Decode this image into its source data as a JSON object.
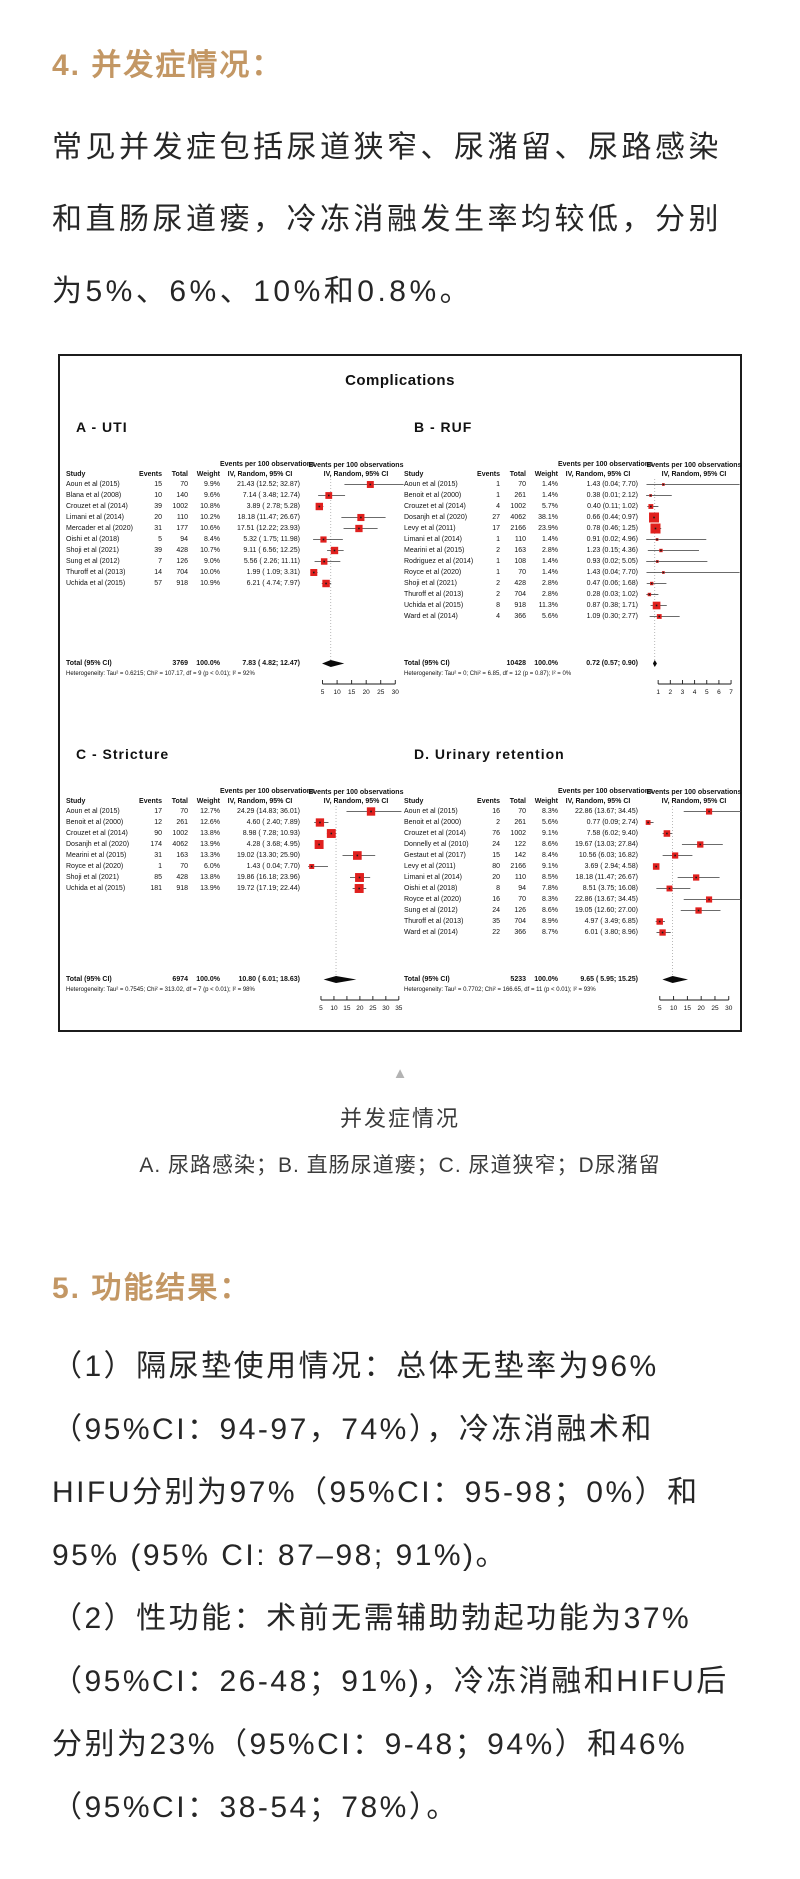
{
  "page": {
    "accent": "#c39764",
    "text_color": "#262626",
    "marker_color": "#e0201e"
  },
  "section4": {
    "heading": "4. 并发症情况：",
    "lines": [
      "常见并发症包括尿道狭窄、尿潴留、尿路感染",
      "和直肠尿道瘘，冷冻消融发生率均较低，分别",
      "为5%、6%、10%和0.8%。"
    ]
  },
  "figure": {
    "title": "Complications",
    "col_headers": {
      "study": "Study",
      "events": "Events",
      "total": "Total",
      "weight": "Weight",
      "ci_line1": "Events per 100 observations",
      "ci_line2": "IV, Random, 95% CI"
    },
    "panels": [
      {
        "label": "A - UTI",
        "row": 1,
        "axis_max": 33,
        "ticks": [
          5,
          10,
          15,
          20,
          25,
          30
        ],
        "studies": [
          {
            "name": "Aoun et al (2015)",
            "events": "15",
            "total": "70",
            "weight": "9.9%",
            "ci": "21.43 (12.52; 32.87)",
            "est": 21.43,
            "lo": 12.52,
            "hi": 32.87,
            "w": 9.9
          },
          {
            "name": "Blana et al (2008)",
            "events": "10",
            "total": "140",
            "weight": "9.6%",
            "ci": "7.14 ( 3.48; 12.74)",
            "est": 7.14,
            "lo": 3.48,
            "hi": 12.74,
            "w": 9.6
          },
          {
            "name": "Crouzet et al (2014)",
            "events": "39",
            "total": "1002",
            "weight": "10.8%",
            "ci": "3.89 ( 2.78;  5.28)",
            "est": 3.89,
            "lo": 2.78,
            "hi": 5.28,
            "w": 10.8
          },
          {
            "name": "Limani et al (2014)",
            "events": "20",
            "total": "110",
            "weight": "10.2%",
            "ci": "18.18 (11.47; 26.67)",
            "est": 18.18,
            "lo": 11.47,
            "hi": 26.67,
            "w": 10.2
          },
          {
            "name": "Mercader et al (2020)",
            "events": "31",
            "total": "177",
            "weight": "10.6%",
            "ci": "17.51 (12.22; 23.93)",
            "est": 17.51,
            "lo": 12.22,
            "hi": 23.93,
            "w": 10.6
          },
          {
            "name": "Oishi et al (2018)",
            "events": "5",
            "total": "94",
            "weight": "8.4%",
            "ci": "5.32 ( 1.75; 11.98)",
            "est": 5.32,
            "lo": 1.75,
            "hi": 11.98,
            "w": 8.4
          },
          {
            "name": "Shoji et al (2021)",
            "events": "39",
            "total": "428",
            "weight": "10.7%",
            "ci": "9.11 ( 6.56; 12.25)",
            "est": 9.11,
            "lo": 6.56,
            "hi": 12.25,
            "w": 10.7
          },
          {
            "name": "Sung et al (2012)",
            "events": "7",
            "total": "126",
            "weight": "9.0%",
            "ci": "5.56 ( 2.26; 11.11)",
            "est": 5.56,
            "lo": 2.26,
            "hi": 11.11,
            "w": 9.0
          },
          {
            "name": "Thuroff et al (2013)",
            "events": "14",
            "total": "704",
            "weight": "10.0%",
            "ci": "1.99 ( 1.09;  3.31)",
            "est": 1.99,
            "lo": 1.09,
            "hi": 3.31,
            "w": 10.0
          },
          {
            "name": "Uchida et al (2015)",
            "events": "57",
            "total": "918",
            "weight": "10.9%",
            "ci": "6.21 ( 4.74;  7.97)",
            "est": 6.21,
            "lo": 4.74,
            "hi": 7.97,
            "w": 10.9
          }
        ],
        "total_row": {
          "label": "Total (95% CI)",
          "total": "3769",
          "weight": "100.0%",
          "ci": "7.83 ( 4.82; 12.47)",
          "est": 7.83,
          "lo": 4.82,
          "hi": 12.47
        },
        "heterogeneity": "Heterogeneity: Tau² = 0.6215; Chi² = 107.17, df = 9 (p < 0.01); I² = 92%"
      },
      {
        "label": "B - RUF",
        "row": 1,
        "axis_max": 7.9,
        "ticks": [
          1,
          2,
          3,
          4,
          5,
          6,
          7
        ],
        "studies": [
          {
            "name": "Aoun et al (2015)",
            "events": "1",
            "total": "70",
            "weight": "1.4%",
            "ci": "1.43 (0.04; 7.70)",
            "est": 1.43,
            "lo": 0.04,
            "hi": 7.7,
            "w": 1.4
          },
          {
            "name": "Benoit et al (2000)",
            "events": "1",
            "total": "261",
            "weight": "1.4%",
            "ci": "0.38 (0.01; 2.12)",
            "est": 0.38,
            "lo": 0.01,
            "hi": 2.12,
            "w": 1.4
          },
          {
            "name": "Crouzet et al (2014)",
            "events": "4",
            "total": "1002",
            "weight": "5.7%",
            "ci": "0.40 (0.11; 1.02)",
            "est": 0.4,
            "lo": 0.11,
            "hi": 1.02,
            "w": 5.7
          },
          {
            "name": "Dosanjh et al (2020)",
            "events": "27",
            "total": "4062",
            "weight": "38.1%",
            "ci": "0.66 (0.44; 0.97)",
            "est": 0.66,
            "lo": 0.44,
            "hi": 0.97,
            "w": 38.1
          },
          {
            "name": "Levy et al (2011)",
            "events": "17",
            "total": "2166",
            "weight": "23.9%",
            "ci": "0.78 (0.46; 1.25)",
            "est": 0.78,
            "lo": 0.46,
            "hi": 1.25,
            "w": 23.9
          },
          {
            "name": "Limani et al (2014)",
            "events": "1",
            "total": "110",
            "weight": "1.4%",
            "ci": "0.91 (0.02; 4.96)",
            "est": 0.91,
            "lo": 0.02,
            "hi": 4.96,
            "w": 1.4
          },
          {
            "name": "Mearini et al (2015)",
            "events": "2",
            "total": "163",
            "weight": "2.8%",
            "ci": "1.23 (0.15; 4.36)",
            "est": 1.23,
            "lo": 0.15,
            "hi": 4.36,
            "w": 2.8
          },
          {
            "name": "Rodriguez et al (2014)",
            "events": "1",
            "total": "108",
            "weight": "1.4%",
            "ci": "0.93 (0.02; 5.05)",
            "est": 0.93,
            "lo": 0.02,
            "hi": 5.05,
            "w": 1.4
          },
          {
            "name": "Royce et al (2020)",
            "events": "1",
            "total": "70",
            "weight": "1.4%",
            "ci": "1.43 (0.04; 7.70)",
            "est": 1.43,
            "lo": 0.04,
            "hi": 7.7,
            "w": 1.4
          },
          {
            "name": "Shoji et al (2021)",
            "events": "2",
            "total": "428",
            "weight": "2.8%",
            "ci": "0.47 (0.06; 1.68)",
            "est": 0.47,
            "lo": 0.06,
            "hi": 1.68,
            "w": 2.8
          },
          {
            "name": "Thuroff et al (2013)",
            "events": "2",
            "total": "704",
            "weight": "2.8%",
            "ci": "0.28 (0.03; 1.02)",
            "est": 0.28,
            "lo": 0.03,
            "hi": 1.02,
            "w": 2.8
          },
          {
            "name": "Uchida et al (2015)",
            "events": "8",
            "total": "918",
            "weight": "11.3%",
            "ci": "0.87 (0.38; 1.71)",
            "est": 0.87,
            "lo": 0.38,
            "hi": 1.71,
            "w": 11.3
          },
          {
            "name": "Ward et al (2014)",
            "events": "4",
            "total": "366",
            "weight": "5.6%",
            "ci": "1.09 (0.30; 2.77)",
            "est": 1.09,
            "lo": 0.3,
            "hi": 2.77,
            "w": 5.6
          }
        ],
        "total_row": {
          "label": "Total (95% CI)",
          "total": "10428",
          "weight": "100.0%",
          "ci": "0.72 (0.57; 0.90)",
          "est": 0.72,
          "lo": 0.57,
          "hi": 0.9
        },
        "heterogeneity": "Heterogeneity: Tau² = 0; Chi² = 6.85, df = 12 (p = 0.87); I² = 0%"
      },
      {
        "label": "C - Stricture",
        "row": 2,
        "axis_max": 37,
        "ticks": [
          5,
          10,
          15,
          20,
          25,
          30,
          35
        ],
        "studies": [
          {
            "name": "Aoun et al (2015)",
            "events": "17",
            "total": "70",
            "weight": "12.7%",
            "ci": "24.29 (14.83; 36.01)",
            "est": 24.29,
            "lo": 14.83,
            "hi": 36.01,
            "w": 12.7
          },
          {
            "name": "Benoit et al (2000)",
            "events": "12",
            "total": "261",
            "weight": "12.6%",
            "ci": "4.60 ( 2.40;  7.89)",
            "est": 4.6,
            "lo": 2.4,
            "hi": 7.89,
            "w": 12.6
          },
          {
            "name": "Crouzet et al (2014)",
            "events": "90",
            "total": "1002",
            "weight": "13.8%",
            "ci": "8.98 ( 7.28; 10.93)",
            "est": 8.98,
            "lo": 7.28,
            "hi": 10.93,
            "w": 13.8
          },
          {
            "name": "Dosanjh et al (2020)",
            "events": "174",
            "total": "4062",
            "weight": "13.9%",
            "ci": "4.28 ( 3.68;  4.95)",
            "est": 4.28,
            "lo": 3.68,
            "hi": 4.95,
            "w": 13.9
          },
          {
            "name": "Mearini et al (2015)",
            "events": "31",
            "total": "163",
            "weight": "13.3%",
            "ci": "19.02 (13.30; 25.90)",
            "est": 19.02,
            "lo": 13.3,
            "hi": 25.9,
            "w": 13.3
          },
          {
            "name": "Royce et al (2020)",
            "events": "1",
            "total": "70",
            "weight": "6.0%",
            "ci": "1.43 ( 0.04;  7.70)",
            "est": 1.43,
            "lo": 0.04,
            "hi": 7.7,
            "w": 6.0
          },
          {
            "name": "Shoji et al (2021)",
            "events": "85",
            "total": "428",
            "weight": "13.8%",
            "ci": "19.86 (16.18; 23.96)",
            "est": 19.86,
            "lo": 16.18,
            "hi": 23.96,
            "w": 13.8
          },
          {
            "name": "Uchida et al (2015)",
            "events": "181",
            "total": "918",
            "weight": "13.9%",
            "ci": "19.72 (17.19; 22.44)",
            "est": 19.72,
            "lo": 17.19,
            "hi": 22.44,
            "w": 13.9
          }
        ],
        "total_row": {
          "label": "Total (95% CI)",
          "total": "6974",
          "weight": "100.0%",
          "ci": "10.80 ( 6.01; 18.63)",
          "est": 10.8,
          "lo": 6.01,
          "hi": 18.63
        },
        "heterogeneity": "Heterogeneity: Tau² = 0.7545; Chi² = 313.02, df = 7 (p < 0.01); I² = 98%"
      },
      {
        "label": "D. Urinary retention",
        "row": 2,
        "axis_max": 34.8,
        "ticks": [
          5,
          10,
          15,
          20,
          25,
          30
        ],
        "studies": [
          {
            "name": "Aoun et al (2015)",
            "events": "16",
            "total": "70",
            "weight": "8.3%",
            "ci": "22.86 (13.67; 34.45)",
            "est": 22.86,
            "lo": 13.67,
            "hi": 34.45,
            "w": 8.3
          },
          {
            "name": "Benoit et al (2000)",
            "events": "2",
            "total": "261",
            "weight": "5.6%",
            "ci": "0.77 (0.09;  2.74)",
            "est": 0.77,
            "lo": 0.09,
            "hi": 2.74,
            "w": 5.6
          },
          {
            "name": "Crouzet et al (2014)",
            "events": "76",
            "total": "1002",
            "weight": "9.1%",
            "ci": "7.58 (6.02;  9.40)",
            "est": 7.58,
            "lo": 6.02,
            "hi": 9.4,
            "w": 9.1
          },
          {
            "name": "Donnelly et al (2010)",
            "events": "24",
            "total": "122",
            "weight": "8.6%",
            "ci": "19.67 (13.03; 27.84)",
            "est": 19.67,
            "lo": 13.03,
            "hi": 27.84,
            "w": 8.6
          },
          {
            "name": "Gestaut et al (2017)",
            "events": "15",
            "total": "142",
            "weight": "8.4%",
            "ci": "10.56 (6.03; 16.82)",
            "est": 10.56,
            "lo": 6.03,
            "hi": 16.82,
            "w": 8.4
          },
          {
            "name": "Levy et al (2011)",
            "events": "80",
            "total": "2166",
            "weight": "9.1%",
            "ci": "3.69 ( 2.94;  4.58)",
            "est": 3.69,
            "lo": 2.94,
            "hi": 4.58,
            "w": 9.1
          },
          {
            "name": "Limani et al (2014)",
            "events": "20",
            "total": "110",
            "weight": "8.5%",
            "ci": "18.18 (11.47; 26.67)",
            "est": 18.18,
            "lo": 11.47,
            "hi": 26.67,
            "w": 8.5
          },
          {
            "name": "Oishi et al (2018)",
            "events": "8",
            "total": "94",
            "weight": "7.8%",
            "ci": "8.51 (3.75; 16.08)",
            "est": 8.51,
            "lo": 3.75,
            "hi": 16.08,
            "w": 7.8
          },
          {
            "name": "Royce et al (2020)",
            "events": "16",
            "total": "70",
            "weight": "8.3%",
            "ci": "22.86 (13.67; 34.45)",
            "est": 22.86,
            "lo": 13.67,
            "hi": 34.45,
            "w": 8.3
          },
          {
            "name": "Sung et al (2012)",
            "events": "24",
            "total": "126",
            "weight": "8.6%",
            "ci": "19.05 (12.60; 27.00)",
            "est": 19.05,
            "lo": 12.6,
            "hi": 27.0,
            "w": 8.6
          },
          {
            "name": "Thuroff et al (2013)",
            "events": "35",
            "total": "704",
            "weight": "8.9%",
            "ci": "4.97 ( 3.49;  6.85)",
            "est": 4.97,
            "lo": 3.49,
            "hi": 6.85,
            "w": 8.9
          },
          {
            "name": "Ward et al (2014)",
            "events": "22",
            "total": "366",
            "weight": "8.7%",
            "ci": "6.01 ( 3.80;  8.96)",
            "est": 6.01,
            "lo": 3.8,
            "hi": 8.96,
            "w": 8.7
          }
        ],
        "total_row": {
          "label": "Total (95% CI)",
          "total": "5233",
          "weight": "100.0%",
          "ci": "9.65 ( 5.95; 15.25)",
          "est": 9.65,
          "lo": 5.95,
          "hi": 15.25
        },
        "heterogeneity": "Heterogeneity: Tau² = 0.7702; Chi² = 166.65, df = 11 (p < 0.01); I² = 93%"
      }
    ]
  },
  "caption": {
    "arrow": "▲",
    "title": "并发症情况",
    "legend": "A.  尿路感染；B. 直肠尿道瘘；C. 尿道狭窄；D尿潴留"
  },
  "section5": {
    "heading": "5. 功能结果：",
    "lines": [
      "（1）隔尿垫使用情况：总体无垫率为96%",
      "（95%CI：94-97，74%），冷冻消融术和",
      "HIFU分别为97%（95%CI：95-98；0%）和",
      "95% (95% CI: 87–98; 91%)。",
      "（2）性功能：术前无需辅助勃起功能为37%",
      "（95%CI：26-48；91%)，冷冻消融和HIFU后",
      "分别为23%（95%CI：9-48；94%）和46%",
      "（95%CI：38-54；78%）。"
    ]
  }
}
